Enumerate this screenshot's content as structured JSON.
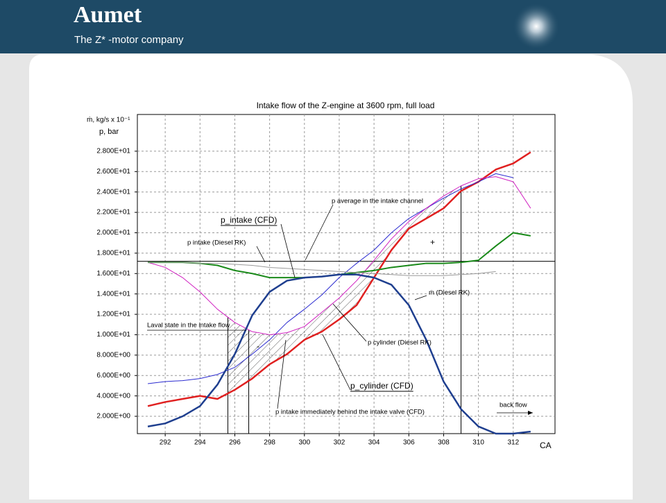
{
  "header": {
    "title": "Aumet",
    "subtitle": "The Z* -motor company"
  },
  "chart_data": {
    "type": "line",
    "title": "Intake flow of the Z-engine at 3600 rpm, full load",
    "y_label": [
      "ṁ, kg/s x 10⁻¹",
      "p, bar"
    ],
    "x_label": "CA",
    "x": [
      291,
      292,
      293,
      294,
      295,
      296,
      297,
      298,
      299,
      300,
      301,
      302,
      303,
      304,
      305,
      306,
      307,
      308,
      309,
      310,
      311,
      312,
      313
    ],
    "series": [
      {
        "color": "#e02020",
        "width": 2.5,
        "values": [
          3.0,
          3.4,
          3.7,
          4.0,
          3.7,
          4.6,
          5.7,
          7.1,
          8.1,
          9.5,
          10.3,
          11.5,
          12.9,
          15.6,
          18.3,
          20.4,
          21.4,
          22.4,
          24.1,
          25.0,
          26.2,
          26.8,
          27.9
        ]
      },
      {
        "color": "#2a2ad0",
        "width": 1,
        "values": [
          5.2,
          5.4,
          5.5,
          5.7,
          6.1,
          6.8,
          8.1,
          9.5,
          11.2,
          12.5,
          13.9,
          15.6,
          17.0,
          18.3,
          20.0,
          21.4,
          22.4,
          23.4,
          24.3,
          25.0,
          25.8,
          25.4,
          null
        ]
      },
      {
        "color": "#d020c0",
        "width": 1,
        "values": [
          17.1,
          16.6,
          15.6,
          14.2,
          12.5,
          11.2,
          10.3,
          10.0,
          10.2,
          10.8,
          12.2,
          13.6,
          15.3,
          17.3,
          19.4,
          21.1,
          22.4,
          23.6,
          24.6,
          25.3,
          25.5,
          25.0,
          22.4
        ]
      },
      {
        "color": "#1a8a1a",
        "width": 2,
        "values": [
          17.1,
          17.1,
          17.1,
          17.0,
          16.8,
          16.3,
          16.0,
          15.6,
          15.6,
          15.6,
          15.7,
          15.9,
          16.1,
          16.3,
          16.6,
          16.8,
          17.0,
          17.0,
          17.1,
          17.3,
          18.7,
          20.0,
          19.7
        ]
      },
      {
        "color": "#1f3f8f",
        "width": 2.5,
        "values": [
          1.0,
          1.3,
          2.0,
          3.0,
          5.1,
          8.1,
          11.9,
          14.2,
          15.3,
          15.6,
          15.7,
          15.9,
          15.9,
          15.6,
          14.9,
          12.9,
          9.5,
          5.4,
          2.7,
          1.0,
          0.3,
          0.3,
          0.5
        ]
      },
      {
        "color": "#999999",
        "width": 1,
        "values": [
          17.1,
          17.1,
          17.1,
          17.0,
          17.0,
          16.9,
          16.8,
          16.6,
          16.5,
          16.4,
          16.3,
          16.2,
          16.1,
          16.0,
          15.9,
          15.8,
          15.8,
          15.8,
          15.9,
          16.0,
          16.2,
          null,
          null
        ]
      }
    ],
    "reference_line": 17.2,
    "vlines": [
      295.6,
      296.8,
      309
    ],
    "annotations": [
      "p average in the intake channel",
      "p_intake (CFD)",
      "p intake (Diesel RK)",
      "ṁ (Diesel RK)",
      "Laval state in the intake flow",
      "p cylinder (Diesel RK)",
      "p_cylinder (CFD)",
      "p intake immediately behind the intake valve (CFD)",
      "back flow",
      "+",
      "-"
    ],
    "xlim": [
      290.4,
      314.4
    ],
    "ylim": [
      0.3,
      31.6
    ],
    "xticks": [
      292,
      294,
      296,
      298,
      300,
      302,
      304,
      306,
      308,
      310,
      312
    ],
    "yticks": [
      {
        "value": 2,
        "label": "2.000E+00"
      },
      {
        "value": 4,
        "label": "4.000E+00"
      },
      {
        "value": 6,
        "label": "6.000E+00"
      },
      {
        "value": 8,
        "label": "8.000E+00"
      },
      {
        "value": 10,
        "label": "1.000E+01"
      },
      {
        "value": 12,
        "label": "1.200E+01"
      },
      {
        "value": 14,
        "label": "1.400E+01"
      },
      {
        "value": 16,
        "label": "1.600E+01"
      },
      {
        "value": 18,
        "label": "1.800E+01"
      },
      {
        "value": 20,
        "label": "2.000E+01"
      },
      {
        "value": 22,
        "label": "2.200E+01"
      },
      {
        "value": 24,
        "label": "2.400E+01"
      },
      {
        "value": 26,
        "label": "2.600E+01"
      },
      {
        "value": 28,
        "label": "2.800E+01"
      }
    ],
    "grid": true
  }
}
